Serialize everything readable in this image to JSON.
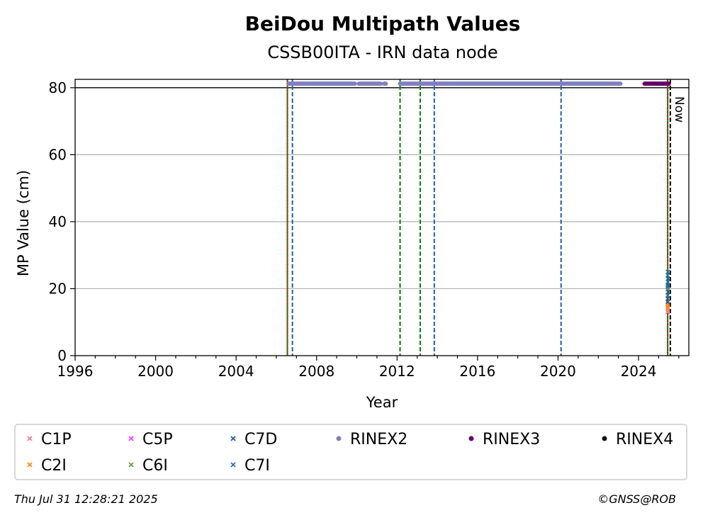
{
  "chart_data": {
    "type": "scatter",
    "title": "BeiDou Multipath Values",
    "subtitle": "CSSB00ITA - IRN data node",
    "xlabel": "Year",
    "ylabel": "MP Value (cm)",
    "xlim": [
      1996,
      2026.5
    ],
    "ylim": [
      0,
      82.5
    ],
    "x_ticks": [
      1996,
      2000,
      2004,
      2008,
      2012,
      2016,
      2020,
      2024
    ],
    "y_ticks": [
      0,
      20,
      40,
      60,
      80
    ],
    "grid": "horizontal",
    "legend_position": "bottom",
    "now_label": "Now",
    "now_x": 2025.58,
    "reference_line_y": 80,
    "vertical_lines": [
      {
        "x": 2006.55,
        "color": "#008000",
        "style": "solid"
      },
      {
        "x": 2006.55,
        "color": "#ff0000",
        "style": "dotted"
      },
      {
        "x": 2006.8,
        "color": "#1f5fa8",
        "style": "dashed"
      },
      {
        "x": 2012.15,
        "color": "#008000",
        "style": "dashed"
      },
      {
        "x": 2013.15,
        "color": "#008000",
        "style": "dashed"
      },
      {
        "x": 2013.85,
        "color": "#1f5fa8",
        "style": "dashed"
      },
      {
        "x": 2020.15,
        "color": "#1f5fa8",
        "style": "dashed"
      },
      {
        "x": 2025.45,
        "color": "#008000",
        "style": "solid"
      },
      {
        "x": 2025.45,
        "color": "#ff0000",
        "style": "dotted"
      },
      {
        "x": 2025.58,
        "color": "#000000",
        "style": "dashed"
      }
    ],
    "series": [
      {
        "name": "C1P",
        "marker": "x",
        "color": "#f08080",
        "points": [
          [
            2025.45,
            13
          ],
          [
            2025.45,
            14
          ],
          [
            2025.46,
            15
          ],
          [
            2025.47,
            13.5
          ],
          [
            2025.45,
            15.5
          ]
        ]
      },
      {
        "name": "C2I",
        "marker": "x",
        "color": "#ff8c00",
        "points": [
          [
            2025.45,
            14.5
          ],
          [
            2025.46,
            15.2
          ]
        ]
      },
      {
        "name": "C5P",
        "marker": "x",
        "color": "#ff33ff",
        "points": []
      },
      {
        "name": "C6I",
        "marker": "x",
        "color": "#6b9e4a",
        "points": [
          [
            2025.46,
            18
          ],
          [
            2025.46,
            20
          ],
          [
            2025.47,
            19
          ]
        ]
      },
      {
        "name": "C7D",
        "marker": "x",
        "color": "#2a5d8f",
        "points": [
          [
            2025.45,
            16
          ],
          [
            2025.45,
            17
          ],
          [
            2025.46,
            19
          ],
          [
            2025.45,
            21
          ],
          [
            2025.46,
            23
          ]
        ]
      },
      {
        "name": "C7I",
        "marker": "x",
        "color": "#2b6cb0",
        "points": [
          [
            2025.45,
            18
          ],
          [
            2025.46,
            22
          ],
          [
            2025.45,
            24
          ],
          [
            2025.46,
            25
          ],
          [
            2025.45,
            20.5
          ]
        ]
      },
      {
        "name": "RINEX2",
        "marker": "dot",
        "color": "#8080c0",
        "y": 81.2,
        "ranges": [
          [
            2006.6,
            2009.9
          ],
          [
            2010.1,
            2011.2
          ],
          [
            2011.35,
            2011.45
          ],
          [
            2012.15,
            2023.1
          ]
        ]
      },
      {
        "name": "RINEX3",
        "marker": "dot",
        "color": "#660066",
        "y": 81.2,
        "ranges": [
          [
            2024.3,
            2025.5
          ]
        ]
      },
      {
        "name": "RINEX4",
        "marker": "dot",
        "color": "#1a0a1a",
        "y": 81.2,
        "ranges": []
      }
    ]
  },
  "footer": {
    "timestamp": "Thu Jul 31 12:28:21 2025",
    "credit": "©GNSS@ROB"
  }
}
